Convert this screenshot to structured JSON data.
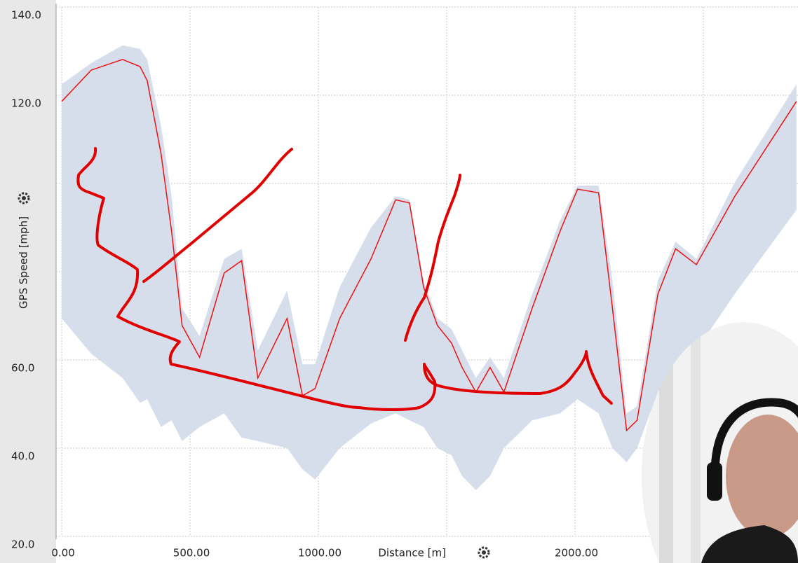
{
  "chart_data": {
    "type": "line",
    "y_label": "GPS Speed [mph]",
    "x_label": "Distance [m]",
    "x": [
      0,
      115,
      237,
      305,
      333,
      387,
      428,
      469,
      537,
      633,
      701,
      764,
      878,
      938,
      987,
      1083,
      1205,
      1301,
      1355,
      1410,
      1464,
      1519,
      1560,
      1614,
      1669,
      1723,
      1833,
      1942,
      2010,
      2092,
      2146,
      2201,
      2242,
      2323,
      2392,
      2473,
      2623,
      2863
    ],
    "values": [
      118.6,
      125.7,
      128.1,
      126.5,
      123.3,
      106.7,
      89.2,
      67.8,
      60.6,
      79.7,
      82.5,
      55.9,
      69.4,
      51.9,
      53.5,
      69.4,
      82.9,
      96.3,
      95.6,
      76.5,
      67.8,
      63.8,
      58.3,
      52.7,
      58.3,
      52.7,
      71.7,
      89.2,
      98.7,
      97.9,
      71.7,
      44.0,
      46.3,
      74.9,
      85.2,
      81.6,
      97.1,
      118.6
    ],
    "color": "#ee1111",
    "band": {
      "color": "#d5deea",
      "upper": [
        122.5,
        127.3,
        131.3,
        130.5,
        128.1,
        113,
        97.1,
        71.7,
        65.4,
        82.9,
        85.2,
        62.2,
        75.7,
        59,
        59,
        76.5,
        90,
        97.1,
        96.3,
        78,
        69.4,
        67,
        62.2,
        55.9,
        60.6,
        55.9,
        74.9,
        91.6,
        99.5,
        99.5,
        78,
        47.9,
        49.5,
        78,
        86.8,
        82.9,
        100.3,
        122.5
      ],
      "lower": [
        69.4,
        61.4,
        55.9,
        50.3,
        51.1,
        44.8,
        46.3,
        41.6,
        44.8,
        47.9,
        42.4,
        41.6,
        40,
        35.2,
        32.9,
        40,
        45.6,
        47.9,
        46.3,
        44.8,
        40,
        38.4,
        33.7,
        30.5,
        33.7,
        40,
        46.3,
        47.9,
        51.1,
        47.9,
        40,
        36.8,
        40,
        52.7,
        59,
        62.2,
        75,
        94
      ]
    },
    "xlim": [
      -22,
      2869
    ],
    "ylim": [
      20,
      140
    ],
    "xticks": [
      {
        "value": 0,
        "label": "0.00"
      },
      {
        "value": 500,
        "label": "500.00"
      },
      {
        "value": 1000,
        "label": "1000.00"
      },
      {
        "value": 1500,
        "label": null
      },
      {
        "value": 2000,
        "label": "2000.00"
      },
      {
        "value": 2500,
        "label": null
      }
    ],
    "yticks": [
      {
        "value": 20,
        "label": "20.0"
      },
      {
        "value": 40,
        "label": "40.0"
      },
      {
        "value": 60,
        "label": "60.0"
      },
      {
        "value": 80,
        "label": null
      },
      {
        "value": 100,
        "label": null
      },
      {
        "value": 120,
        "label": "120.0"
      },
      {
        "value": 140,
        "label": "140.0"
      }
    ],
    "grid": true
  }
}
